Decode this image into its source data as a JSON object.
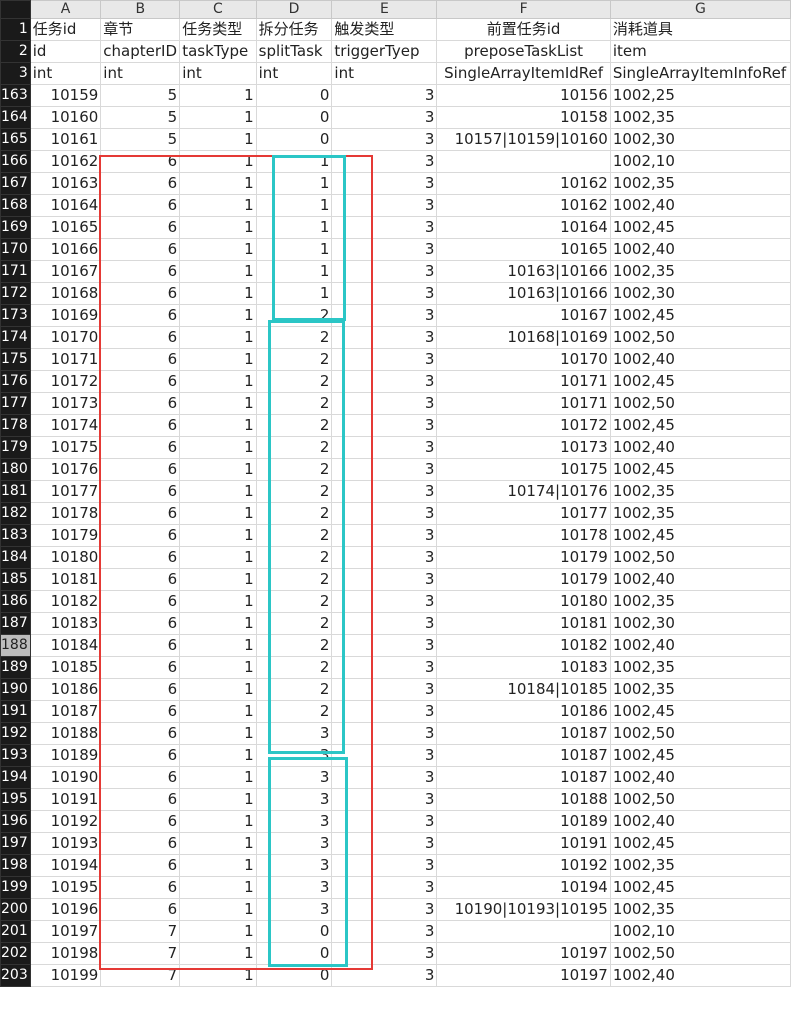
{
  "columns": [
    "A",
    "B",
    "C",
    "D",
    "E",
    "F",
    "G"
  ],
  "header_rows": [
    {
      "num": "1",
      "cells": [
        "任务id",
        "章节",
        "任务类型",
        "拆分任务",
        "触发类型",
        "前置任务id",
        "消耗道具"
      ]
    },
    {
      "num": "2",
      "cells": [
        "id",
        "chapterID",
        "taskType",
        "splitTask",
        "triggerTyep",
        "preposeTaskList",
        "item"
      ]
    },
    {
      "num": "3",
      "cells": [
        "int",
        "int",
        "int",
        "int",
        "int",
        "SingleArrayItemIdRef",
        "SingleArrayItemInfoRef"
      ]
    }
  ],
  "rows": [
    {
      "num": "163",
      "cells": [
        "10159",
        "5",
        "1",
        "0",
        "3",
        "10156",
        "1002,25"
      ]
    },
    {
      "num": "164",
      "cells": [
        "10160",
        "5",
        "1",
        "0",
        "3",
        "10158",
        "1002,35"
      ]
    },
    {
      "num": "165",
      "cells": [
        "10161",
        "5",
        "1",
        "0",
        "3",
        "10157|10159|10160",
        "1002,30"
      ]
    },
    {
      "num": "166",
      "cells": [
        "10162",
        "6",
        "1",
        "1",
        "3",
        "",
        "1002,10"
      ]
    },
    {
      "num": "167",
      "cells": [
        "10163",
        "6",
        "1",
        "1",
        "3",
        "10162",
        "1002,35"
      ]
    },
    {
      "num": "168",
      "cells": [
        "10164",
        "6",
        "1",
        "1",
        "3",
        "10162",
        "1002,40"
      ]
    },
    {
      "num": "169",
      "cells": [
        "10165",
        "6",
        "1",
        "1",
        "3",
        "10164",
        "1002,45"
      ]
    },
    {
      "num": "170",
      "cells": [
        "10166",
        "6",
        "1",
        "1",
        "3",
        "10165",
        "1002,40"
      ]
    },
    {
      "num": "171",
      "cells": [
        "10167",
        "6",
        "1",
        "1",
        "3",
        "10163|10166",
        "1002,35"
      ]
    },
    {
      "num": "172",
      "cells": [
        "10168",
        "6",
        "1",
        "1",
        "3",
        "10163|10166",
        "1002,30"
      ]
    },
    {
      "num": "173",
      "cells": [
        "10169",
        "6",
        "1",
        "2",
        "3",
        "10167",
        "1002,45"
      ]
    },
    {
      "num": "174",
      "cells": [
        "10170",
        "6",
        "1",
        "2",
        "3",
        "10168|10169",
        "1002,50"
      ]
    },
    {
      "num": "175",
      "cells": [
        "10171",
        "6",
        "1",
        "2",
        "3",
        "10170",
        "1002,40"
      ]
    },
    {
      "num": "176",
      "cells": [
        "10172",
        "6",
        "1",
        "2",
        "3",
        "10171",
        "1002,45"
      ]
    },
    {
      "num": "177",
      "cells": [
        "10173",
        "6",
        "1",
        "2",
        "3",
        "10171",
        "1002,50"
      ]
    },
    {
      "num": "178",
      "cells": [
        "10174",
        "6",
        "1",
        "2",
        "3",
        "10172",
        "1002,45"
      ]
    },
    {
      "num": "179",
      "cells": [
        "10175",
        "6",
        "1",
        "2",
        "3",
        "10173",
        "1002,40"
      ]
    },
    {
      "num": "180",
      "cells": [
        "10176",
        "6",
        "1",
        "2",
        "3",
        "10175",
        "1002,45"
      ]
    },
    {
      "num": "181",
      "cells": [
        "10177",
        "6",
        "1",
        "2",
        "3",
        "10174|10176",
        "1002,35"
      ]
    },
    {
      "num": "182",
      "cells": [
        "10178",
        "6",
        "1",
        "2",
        "3",
        "10177",
        "1002,35"
      ]
    },
    {
      "num": "183",
      "cells": [
        "10179",
        "6",
        "1",
        "2",
        "3",
        "10178",
        "1002,45"
      ]
    },
    {
      "num": "184",
      "cells": [
        "10180",
        "6",
        "1",
        "2",
        "3",
        "10179",
        "1002,50"
      ]
    },
    {
      "num": "185",
      "cells": [
        "10181",
        "6",
        "1",
        "2",
        "3",
        "10179",
        "1002,40"
      ]
    },
    {
      "num": "186",
      "cells": [
        "10182",
        "6",
        "1",
        "2",
        "3",
        "10180",
        "1002,35"
      ]
    },
    {
      "num": "187",
      "cells": [
        "10183",
        "6",
        "1",
        "2",
        "3",
        "10181",
        "1002,30"
      ]
    },
    {
      "num": "188",
      "cells": [
        "10184",
        "6",
        "1",
        "2",
        "3",
        "10182",
        "1002,40"
      ],
      "selected": true
    },
    {
      "num": "189",
      "cells": [
        "10185",
        "6",
        "1",
        "2",
        "3",
        "10183",
        "1002,35"
      ]
    },
    {
      "num": "190",
      "cells": [
        "10186",
        "6",
        "1",
        "2",
        "3",
        "10184|10185",
        "1002,35"
      ]
    },
    {
      "num": "191",
      "cells": [
        "10187",
        "6",
        "1",
        "2",
        "3",
        "10186",
        "1002,45"
      ]
    },
    {
      "num": "192",
      "cells": [
        "10188",
        "6",
        "1",
        "3",
        "3",
        "10187",
        "1002,50"
      ]
    },
    {
      "num": "193",
      "cells": [
        "10189",
        "6",
        "1",
        "3",
        "3",
        "10187",
        "1002,45"
      ]
    },
    {
      "num": "194",
      "cells": [
        "10190",
        "6",
        "1",
        "3",
        "3",
        "10187",
        "1002,40"
      ]
    },
    {
      "num": "195",
      "cells": [
        "10191",
        "6",
        "1",
        "3",
        "3",
        "10188",
        "1002,50"
      ]
    },
    {
      "num": "196",
      "cells": [
        "10192",
        "6",
        "1",
        "3",
        "3",
        "10189",
        "1002,40"
      ]
    },
    {
      "num": "197",
      "cells": [
        "10193",
        "6",
        "1",
        "3",
        "3",
        "10191",
        "1002,45"
      ]
    },
    {
      "num": "198",
      "cells": [
        "10194",
        "6",
        "1",
        "3",
        "3",
        "10192",
        "1002,35"
      ]
    },
    {
      "num": "199",
      "cells": [
        "10195",
        "6",
        "1",
        "3",
        "3",
        "10194",
        "1002,45"
      ]
    },
    {
      "num": "200",
      "cells": [
        "10196",
        "6",
        "1",
        "3",
        "3",
        "10190|10193|10195",
        "1002,35"
      ]
    },
    {
      "num": "201",
      "cells": [
        "10197",
        "7",
        "1",
        "0",
        "3",
        "",
        "1002,10"
      ]
    },
    {
      "num": "202",
      "cells": [
        "10198",
        "7",
        "1",
        "0",
        "3",
        "10197",
        "1002,50"
      ]
    },
    {
      "num": "203",
      "cells": [
        "10199",
        "7",
        "1",
        "0",
        "3",
        "10197",
        "1002,40"
      ]
    }
  ],
  "highlight_colors": {
    "red": "#e53935",
    "cyan": "#2bc6c6"
  }
}
